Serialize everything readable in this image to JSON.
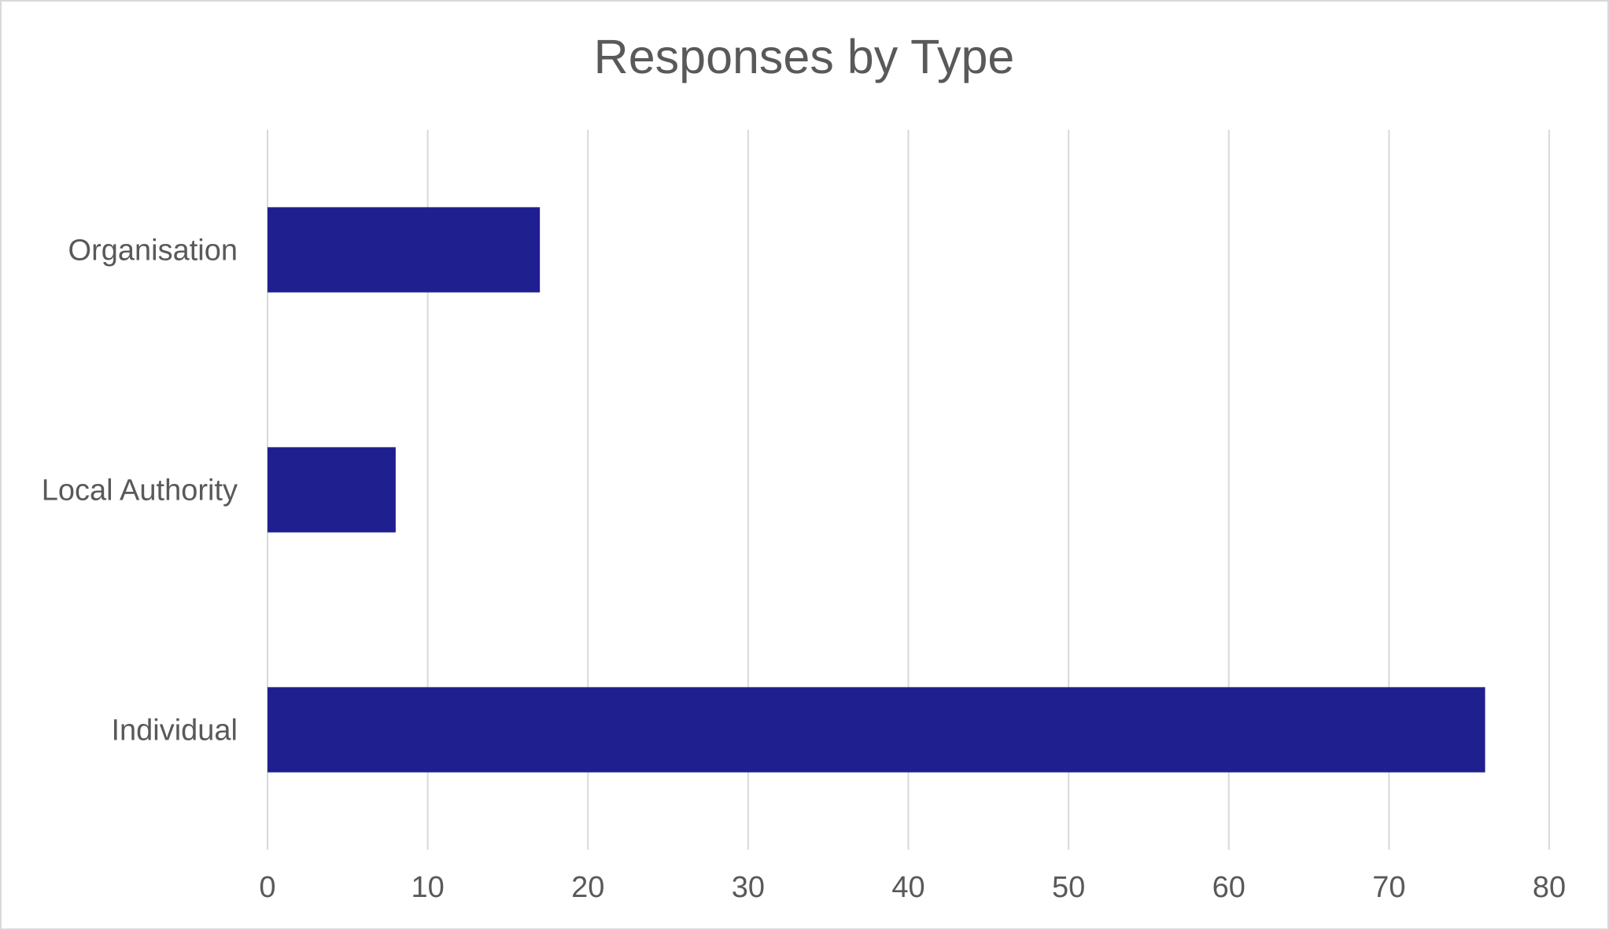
{
  "chart_data": {
    "type": "bar",
    "orientation": "horizontal",
    "title": "Responses by Type",
    "categories": [
      "Organisation",
      "Local Authority",
      "Individual"
    ],
    "values": [
      17,
      8,
      76
    ],
    "xlim": [
      0,
      80
    ],
    "x_ticks": [
      "0",
      "10",
      "20",
      "30",
      "40",
      "50",
      "60",
      "70",
      "80"
    ],
    "bar_color": "#1f1f8f",
    "grid": true
  }
}
